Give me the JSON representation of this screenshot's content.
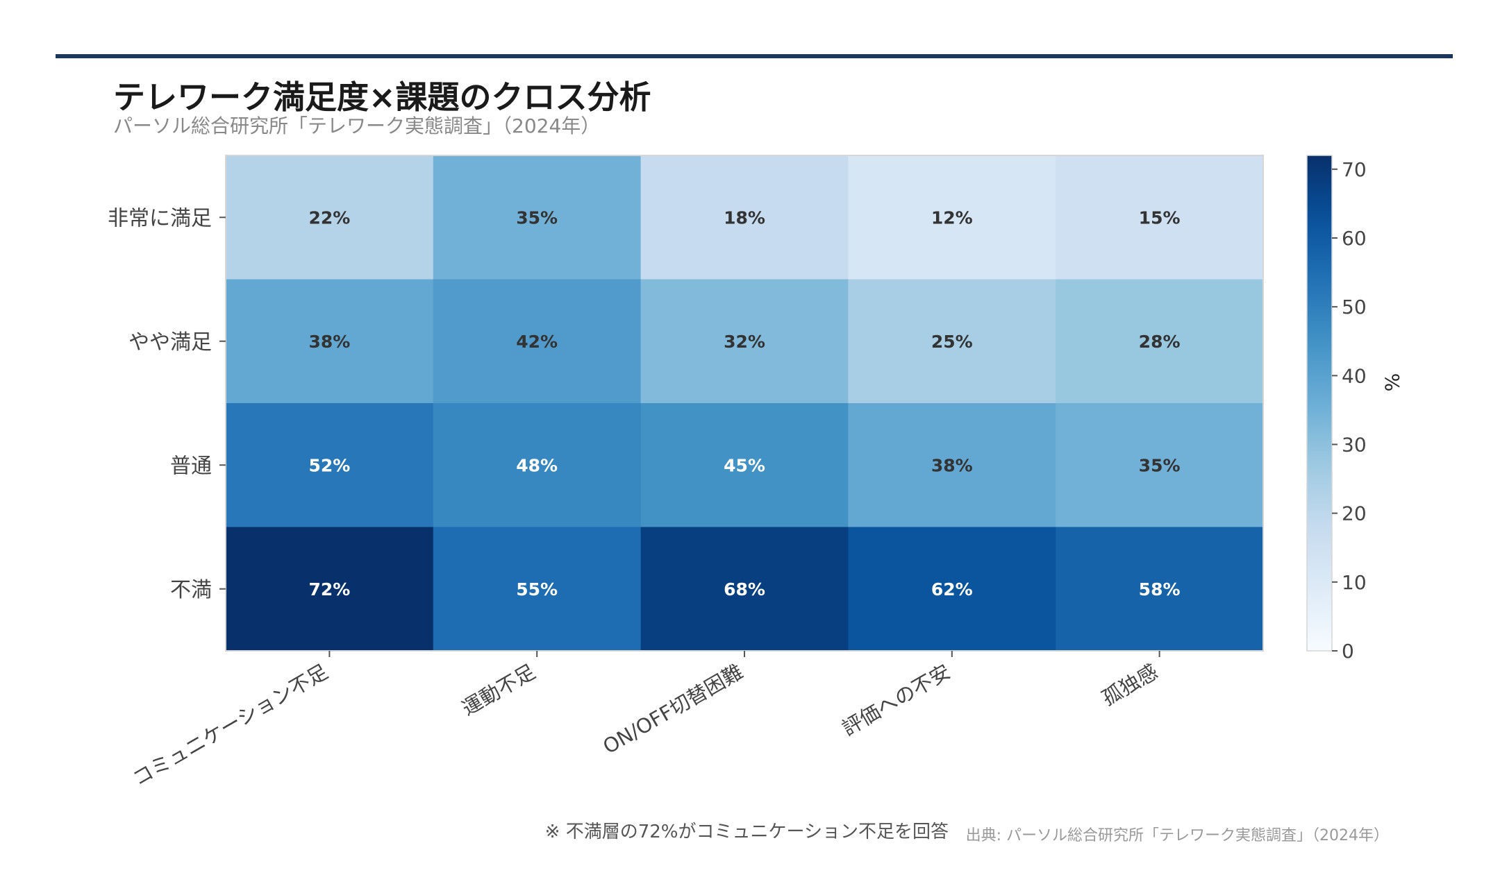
{
  "header": {
    "title": "テレワーク満足度×課題のクロス分析",
    "subtitle": "パーソル総合研究所「テレワーク実態調査」（2024年）"
  },
  "footer": {
    "note": "※ 不満層の72%がコミュニケーション不足を回答",
    "source": "出典: パーソル総合研究所「テレワーク実態調査」（2024年）"
  },
  "colors": {
    "rule": "#1b365d",
    "colormap_low": "#f7fbff",
    "colormap_high": "#08306b",
    "light_label": "#ffffff",
    "dark_label": "#333333"
  },
  "chart_data": {
    "type": "heatmap",
    "title": "テレワーク満足度×課題のクロス分析",
    "subtitle": "パーソル総合研究所「テレワーク実態調査」（2024年）",
    "colormap": "Blues",
    "rows": [
      "非常に満足",
      "やや満足",
      "普通",
      "不満"
    ],
    "columns": [
      "コミュニケーション不足",
      "運動不足",
      "ON/OFF切替困難",
      "評価への不安",
      "孤独感"
    ],
    "values": [
      [
        22,
        35,
        18,
        12,
        15
      ],
      [
        38,
        42,
        32,
        25,
        28
      ],
      [
        52,
        48,
        45,
        38,
        35
      ],
      [
        72,
        55,
        68,
        62,
        58
      ]
    ],
    "value_format": "{v}%",
    "colorbar": {
      "label": "%",
      "min": 0,
      "max": 72,
      "ticks": [
        0,
        10,
        20,
        30,
        40,
        50,
        60,
        70
      ]
    }
  }
}
